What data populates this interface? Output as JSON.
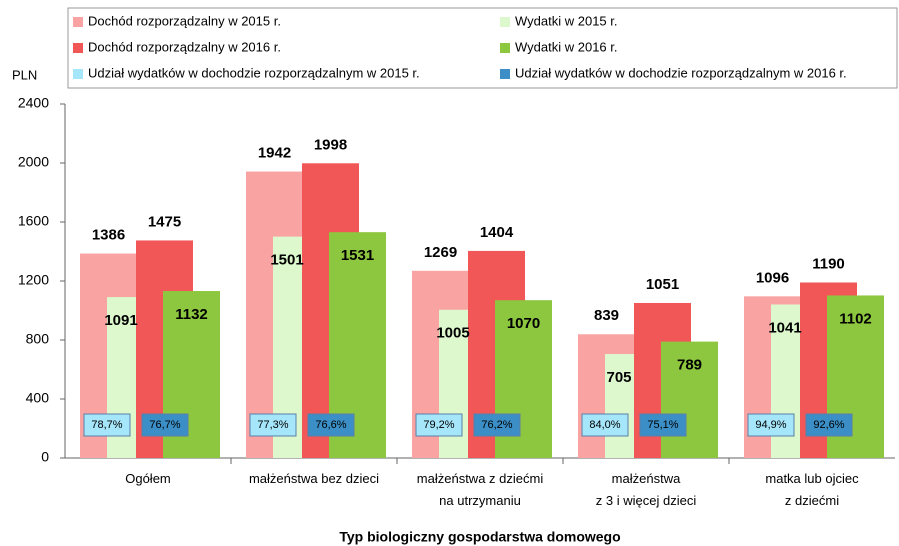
{
  "chart_data": {
    "type": "bar",
    "x_label": "Typ biologiczny gospodarstwa domowego",
    "y_label": "PLN",
    "categories": [
      "Ogółem",
      "małżeństwa bez dzieci",
      "małżeństwa z dziećmi\nna utrzymaniu",
      "małżeństwa\nz 3 i więcej dzieci",
      "matka lub ojciec\nz dziećmi"
    ],
    "series": [
      {
        "name": "Dochód rozporządzalny w 2015 r.",
        "color": "#f9a3a3",
        "values": [
          1386,
          1942,
          1269,
          839,
          1096
        ]
      },
      {
        "name": "Wydatki w 2015 r.",
        "color": "#dcf8cc",
        "values": [
          1091,
          1501,
          1005,
          705,
          1041
        ]
      },
      {
        "name": "Dochód rozporządzalny w 2016 r.",
        "color": "#f25757",
        "values": [
          1475,
          1998,
          1404,
          1051,
          1190
        ]
      },
      {
        "name": "Wydatki w 2016 r.",
        "color": "#8dc63f",
        "values": [
          1132,
          1531,
          1070,
          789,
          1102
        ]
      },
      {
        "name": "Udział wydatków w dochodzie rozporządzalnym w 2015 r.",
        "color": "#a6e6fb",
        "values": [
          78.7,
          77.3,
          79.2,
          84.0,
          94.9
        ],
        "value_labels": [
          "78,7%",
          "77,3%",
          "79,2%",
          "84,0%",
          "94,9%"
        ]
      },
      {
        "name": "Udział wydatków w dochodzie rozporządzalnym w 2016 r.",
        "color": "#3b8fc6",
        "values": [
          76.7,
          76.6,
          76.2,
          75.1,
          92.6
        ],
        "value_labels": [
          "76,7%",
          "76,6%",
          "76,2%",
          "75,1%",
          "92,6%"
        ]
      }
    ],
    "ylim": [
      0,
      2400
    ],
    "yticks": [
      0,
      400,
      800,
      1200,
      1600,
      2000,
      2400
    ],
    "grid": false
  }
}
